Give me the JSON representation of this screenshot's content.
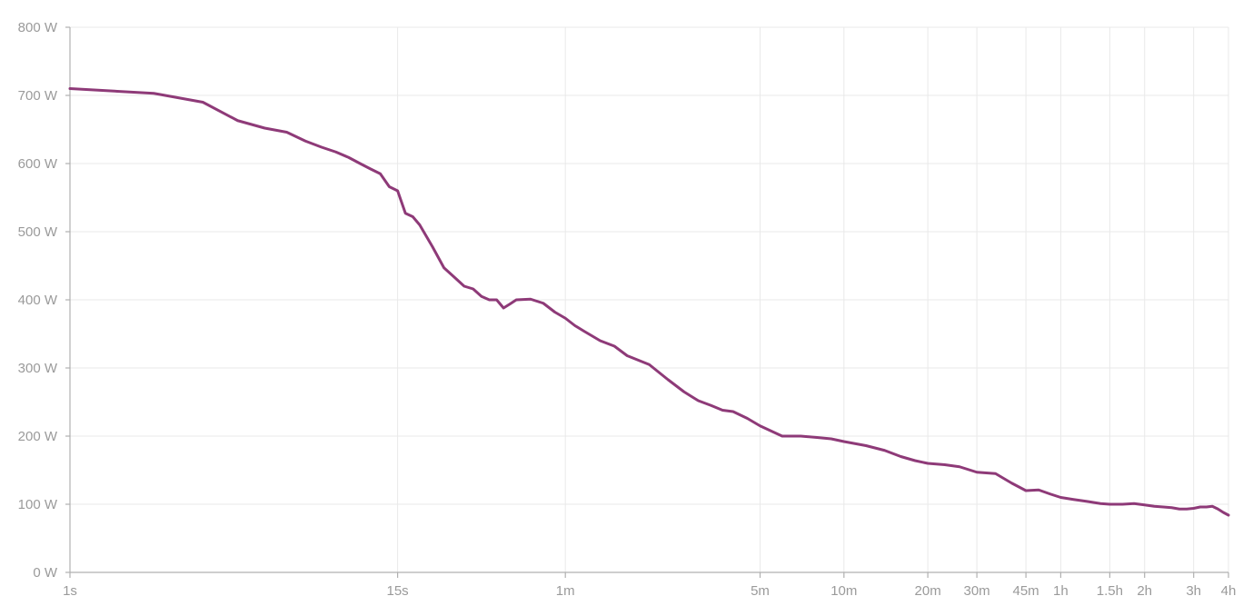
{
  "chart_data": {
    "type": "line",
    "title": "",
    "xlabel": "",
    "ylabel": "",
    "x_scale": "log",
    "x_unit": "seconds",
    "xlim": [
      1,
      14400
    ],
    "ylim": [
      0,
      800
    ],
    "grid": true,
    "legend": "none",
    "y_ticks": [
      {
        "value": 0,
        "label": "0 W"
      },
      {
        "value": 100,
        "label": "100 W"
      },
      {
        "value": 200,
        "label": "200 W"
      },
      {
        "value": 300,
        "label": "300 W"
      },
      {
        "value": 400,
        "label": "400 W"
      },
      {
        "value": 500,
        "label": "500 W"
      },
      {
        "value": 600,
        "label": "600 W"
      },
      {
        "value": 700,
        "label": "700 W"
      },
      {
        "value": 800,
        "label": "800 W"
      }
    ],
    "x_ticks": [
      {
        "value": 1,
        "label": "1s"
      },
      {
        "value": 15,
        "label": "15s"
      },
      {
        "value": 60,
        "label": "1m"
      },
      {
        "value": 300,
        "label": "5m"
      },
      {
        "value": 600,
        "label": "10m"
      },
      {
        "value": 1200,
        "label": "20m"
      },
      {
        "value": 1800,
        "label": "30m"
      },
      {
        "value": 2700,
        "label": "45m"
      },
      {
        "value": 3600,
        "label": "1h"
      },
      {
        "value": 5400,
        "label": "1.5h"
      },
      {
        "value": 7200,
        "label": "2h"
      },
      {
        "value": 10800,
        "label": "3h"
      },
      {
        "value": 14400,
        "label": "4h"
      }
    ],
    "colors": {
      "series": "#8e3a78",
      "grid": "#e9e9e9",
      "axis": "#b0b0b0",
      "tick_text": "#9a9a9a"
    },
    "series": [
      {
        "x": [
          1,
          2,
          3,
          4,
          5,
          6,
          7,
          8,
          9,
          10,
          11,
          12,
          13,
          14,
          15,
          16,
          17,
          18,
          20,
          22,
          24,
          26,
          28,
          30,
          32,
          34,
          36,
          38,
          40,
          45,
          50,
          55,
          60,
          65,
          70,
          80,
          90,
          100,
          120,
          140,
          160,
          180,
          200,
          220,
          240,
          270,
          300,
          360,
          420,
          480,
          540,
          600,
          720,
          840,
          960,
          1080,
          1200,
          1380,
          1560,
          1800,
          2100,
          2400,
          2700,
          3000,
          3300,
          3600,
          4000,
          4500,
          5000,
          5400,
          6000,
          6600,
          7200,
          7800,
          8400,
          9000,
          9600,
          10200,
          10800,
          11400,
          12000,
          12600,
          13200,
          13800,
          14400
        ],
        "y": [
          710,
          703,
          690,
          663,
          652,
          646,
          633,
          624,
          617,
          609,
          600,
          592,
          585,
          566,
          560,
          527,
          522,
          510,
          478,
          447,
          433,
          420,
          416,
          405,
          400,
          400,
          388,
          394,
          400,
          401,
          395,
          382,
          373,
          362,
          354,
          340,
          332,
          318,
          305,
          283,
          265,
          252,
          245,
          238,
          236,
          226,
          215,
          200,
          200,
          198,
          196,
          192,
          186,
          179,
          170,
          164,
          160,
          158,
          155,
          147,
          145,
          131,
          120,
          121,
          115,
          110,
          107,
          104,
          101,
          100,
          100,
          101,
          99,
          97,
          96,
          95,
          93,
          93,
          94,
          96,
          96,
          97,
          93,
          88,
          84
        ]
      }
    ]
  }
}
